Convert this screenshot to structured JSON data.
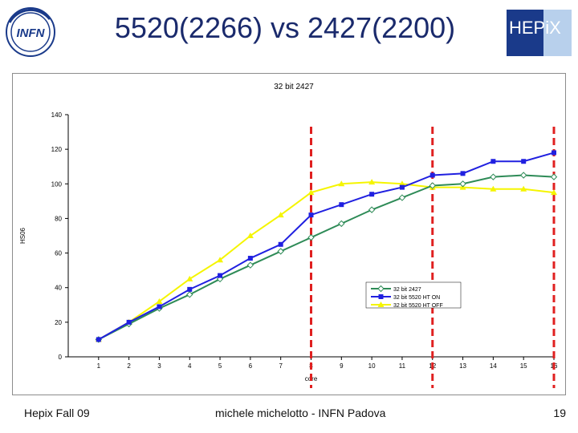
{
  "slide": {
    "title": "5520(2266) vs 2427(2200)",
    "infn_logo_text": "INFN",
    "hepix_logo_text": "HEPiX",
    "footer_left": "Hepix Fall 09",
    "footer_center": "michele michelotto - INFN Padova",
    "page_number": "19"
  },
  "colors": {
    "title": "#1a2a6c",
    "series_2427": "#2e8b57",
    "series_5520_ht_on": "#2020e0",
    "series_5520_ht_off": "#f5f500",
    "marker_lines": "#e02020"
  },
  "chart_data": {
    "type": "line",
    "title": "32 bit 2427",
    "xlabel": "core",
    "ylabel": "HS06",
    "x": [
      1,
      2,
      3,
      4,
      5,
      6,
      7,
      8,
      9,
      10,
      11,
      12,
      13,
      14,
      15,
      16
    ],
    "xlim": [
      0,
      16
    ],
    "ylim": [
      0,
      140
    ],
    "yticks": [
      0,
      20,
      40,
      60,
      80,
      100,
      120,
      140
    ],
    "grid": false,
    "legend_position": "bottom-right",
    "series": [
      {
        "name": "32 bit 2427",
        "color": "#2e8b57",
        "marker": "diamond",
        "values": [
          10,
          19,
          28,
          36,
          45,
          53,
          61,
          69,
          77,
          85,
          92,
          99,
          100,
          104,
          105,
          104
        ]
      },
      {
        "name": "32 bit 5520 HT ON",
        "color": "#2020e0",
        "marker": "square",
        "values": [
          10,
          20,
          29,
          39,
          47,
          57,
          65,
          82,
          88,
          94,
          98,
          105,
          106,
          113,
          113,
          118
        ]
      },
      {
        "name": "32 bit 5520 HT OFF",
        "color": "#f5f500",
        "marker": "triangle",
        "values": [
          10,
          20,
          32,
          45,
          56,
          70,
          82,
          95,
          100,
          101,
          100,
          98,
          98,
          97,
          97,
          95
        ]
      }
    ],
    "vertical_markers": {
      "x_values": [
        8,
        12,
        16
      ],
      "style": "dashed",
      "color": "#e02020"
    }
  }
}
